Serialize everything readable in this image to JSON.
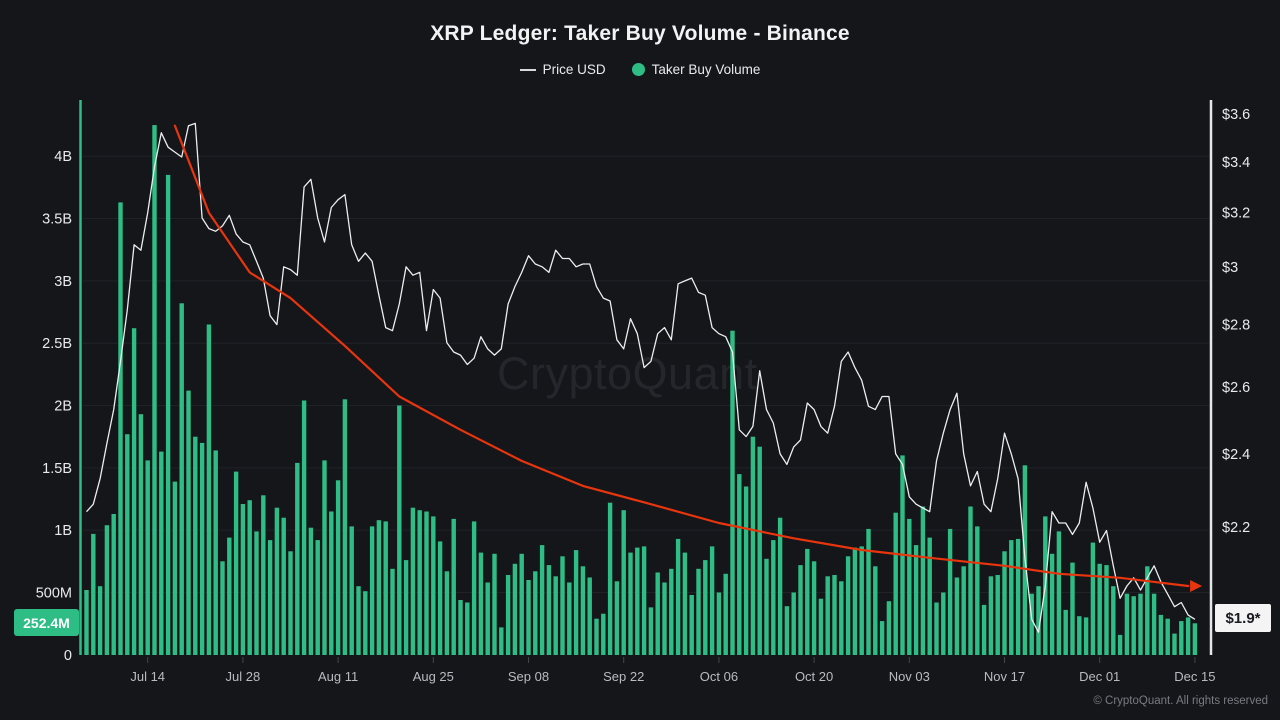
{
  "title": "XRP Ledger: Taker Buy Volume - Binance",
  "legend": [
    {
      "label": "Price USD",
      "marker": "line",
      "color": "#d9dadd"
    },
    {
      "label": "Taker Buy Volume",
      "marker": "dot",
      "color": "#2ebd85"
    }
  ],
  "watermark": "CryptoQuant",
  "footer": "© CryptoQuant. All rights reserved",
  "badges": {
    "latest_volume": "252.4M",
    "latest_price": "$1.9*"
  },
  "colors": {
    "background": "#15161a",
    "bar": "#2ebd85",
    "price_line": "#ededee",
    "trend_line": "#e8350e",
    "grid": "#212228",
    "axis_left": "#2ebd85",
    "axis_right": "#e5e6e8",
    "tick_text": "#e9eaec",
    "x_tick_text": "#b9bbc0",
    "tick_mark": "#45464c"
  },
  "chart_data": {
    "type": "bar+line",
    "title": "XRP Ledger: Taker Buy Volume - Binance",
    "x_start": "Jul 05",
    "x_end": "Dec 15",
    "x_interval": "daily",
    "y_left_label": "Taker Buy Volume",
    "y_left_unit": "XRP (billions)",
    "y_left_scale": "linear",
    "y_left_range": [
      0,
      4.45
    ],
    "y_right_label": "Price USD",
    "y_right_scale": "log",
    "y_right_range": [
      1.88,
      3.62
    ],
    "grid": "horizontal-only",
    "legend_position": "top-center",
    "y_left_ticks": [
      {
        "label": "0",
        "value": 0
      },
      {
        "label": "500M",
        "value": 0.5
      },
      {
        "label": "1B",
        "value": 1
      },
      {
        "label": "1.5B",
        "value": 1.5
      },
      {
        "label": "2B",
        "value": 2
      },
      {
        "label": "2.5B",
        "value": 2.5
      },
      {
        "label": "3B",
        "value": 3
      },
      {
        "label": "3.5B",
        "value": 3.5
      },
      {
        "label": "4B",
        "value": 4
      }
    ],
    "y_right_ticks": [
      {
        "label": "$3.6",
        "value": 3.6
      },
      {
        "label": "$3.4",
        "value": 3.4
      },
      {
        "label": "$3.2",
        "value": 3.2
      },
      {
        "label": "$3",
        "value": 3
      },
      {
        "label": "$2.8",
        "value": 2.8
      },
      {
        "label": "$2.6",
        "value": 2.6
      },
      {
        "label": "$2.4",
        "value": 2.4
      },
      {
        "label": "$2.2",
        "value": 2.2
      }
    ],
    "x_ticks": [
      {
        "label": "Jul 14",
        "day": 9
      },
      {
        "label": "Jul 28",
        "day": 23
      },
      {
        "label": "Aug 11",
        "day": 37
      },
      {
        "label": "Aug 25",
        "day": 51
      },
      {
        "label": "Sep 08",
        "day": 65
      },
      {
        "label": "Sep 22",
        "day": 79
      },
      {
        "label": "Oct 06",
        "day": 93
      },
      {
        "label": "Oct 20",
        "day": 107
      },
      {
        "label": "Nov 03",
        "day": 121
      },
      {
        "label": "Nov 17",
        "day": 135
      },
      {
        "label": "Dec 01",
        "day": 149
      },
      {
        "label": "Dec 15",
        "day": 163
      }
    ],
    "volume_billions": [
      0.52,
      0.97,
      0.55,
      1.04,
      1.13,
      3.63,
      1.77,
      2.62,
      1.93,
      1.56,
      4.25,
      1.63,
      3.85,
      1.39,
      2.82,
      2.12,
      1.75,
      1.7,
      2.65,
      1.64,
      0.75,
      0.94,
      1.47,
      1.21,
      1.24,
      0.99,
      1.28,
      0.92,
      1.18,
      1.1,
      0.83,
      1.54,
      2.04,
      1.02,
      0.92,
      1.56,
      1.15,
      1.4,
      2.05,
      1.03,
      0.55,
      0.51,
      1.03,
      1.08,
      1.07,
      0.69,
      2.0,
      0.76,
      1.18,
      1.16,
      1.15,
      1.11,
      0.91,
      0.67,
      1.09,
      0.44,
      0.42,
      1.07,
      0.82,
      0.58,
      0.81,
      0.22,
      0.64,
      0.73,
      0.81,
      0.6,
      0.67,
      0.88,
      0.72,
      0.63,
      0.79,
      0.58,
      0.84,
      0.71,
      0.62,
      0.29,
      0.33,
      1.22,
      0.59,
      1.16,
      0.82,
      0.86,
      0.87,
      0.38,
      0.66,
      0.58,
      0.69,
      0.93,
      0.82,
      0.48,
      0.69,
      0.76,
      0.87,
      0.5,
      0.65,
      2.6,
      1.45,
      1.35,
      1.75,
      1.67,
      0.77,
      0.92,
      1.1,
      0.39,
      0.5,
      0.72,
      0.85,
      0.75,
      0.45,
      0.63,
      0.64,
      0.59,
      0.79,
      0.86,
      0.87,
      1.01,
      0.71,
      0.27,
      0.43,
      1.14,
      1.6,
      1.09,
      0.88,
      1.19,
      0.94,
      0.42,
      0.5,
      1.01,
      0.62,
      0.71,
      1.19,
      1.03,
      0.4,
      0.63,
      0.64,
      0.83,
      0.92,
      0.93,
      1.52,
      0.49,
      0.55,
      1.11,
      0.81,
      0.99,
      0.36,
      0.74,
      0.31,
      0.3,
      0.9,
      0.73,
      0.72,
      0.55,
      0.16,
      0.49,
      0.47,
      0.49,
      0.71,
      0.49,
      0.32,
      0.29,
      0.17,
      0.27,
      0.3,
      0.2524
    ],
    "price_usd": [
      2.24,
      2.26,
      2.33,
      2.43,
      2.53,
      2.68,
      2.85,
      3.08,
      3.06,
      3.2,
      3.38,
      3.52,
      3.46,
      3.44,
      3.42,
      3.55,
      3.56,
      3.18,
      3.14,
      3.13,
      3.15,
      3.19,
      3.12,
      3.09,
      3.08,
      3.02,
      2.96,
      2.83,
      2.8,
      3.0,
      2.99,
      2.97,
      3.3,
      3.33,
      3.18,
      3.09,
      3.22,
      3.25,
      3.27,
      3.08,
      3.02,
      3.05,
      3.02,
      2.9,
      2.79,
      2.78,
      2.87,
      3.0,
      2.97,
      2.98,
      2.78,
      2.92,
      2.89,
      2.74,
      2.71,
      2.7,
      2.67,
      2.69,
      2.76,
      2.72,
      2.7,
      2.72,
      2.87,
      2.93,
      2.98,
      3.04,
      3.01,
      3.0,
      2.98,
      3.06,
      3.03,
      3.03,
      3.0,
      3.01,
      3.01,
      2.93,
      2.89,
      2.88,
      2.75,
      2.72,
      2.82,
      2.77,
      2.66,
      2.68,
      2.77,
      2.79,
      2.75,
      2.94,
      2.95,
      2.96,
      2.91,
      2.9,
      2.79,
      2.77,
      2.76,
      2.71,
      2.47,
      2.45,
      2.48,
      2.65,
      2.53,
      2.49,
      2.4,
      2.37,
      2.42,
      2.44,
      2.55,
      2.53,
      2.48,
      2.46,
      2.54,
      2.68,
      2.71,
      2.66,
      2.62,
      2.54,
      2.53,
      2.57,
      2.57,
      2.4,
      2.37,
      2.28,
      2.26,
      2.25,
      2.24,
      2.38,
      2.46,
      2.53,
      2.58,
      2.4,
      2.31,
      2.35,
      2.26,
      2.24,
      2.33,
      2.46,
      2.4,
      2.33,
      2.12,
      1.97,
      1.94,
      2.05,
      2.24,
      2.21,
      2.21,
      2.18,
      2.21,
      2.32,
      2.25,
      2.16,
      2.19,
      2.1,
      2.02,
      2.05,
      2.07,
      2.04,
      2.07,
      2.1,
      2.06,
      2.03,
      2.0,
      2.01,
      1.98,
      1.97
    ],
    "trend_line": {
      "description": "decaying trend curve with right arrow",
      "points_day_price": [
        [
          13,
          3.55
        ],
        [
          18,
          3.2
        ],
        [
          24,
          2.98
        ],
        [
          30,
          2.89
        ],
        [
          38,
          2.73
        ],
        [
          46,
          2.57
        ],
        [
          55,
          2.47
        ],
        [
          64,
          2.38
        ],
        [
          73,
          2.31
        ],
        [
          83,
          2.26
        ],
        [
          93,
          2.21
        ],
        [
          104,
          2.17
        ],
        [
          114,
          2.14
        ],
        [
          124,
          2.12
        ],
        [
          135,
          2.1
        ],
        [
          143,
          2.08
        ],
        [
          152,
          2.07
        ],
        [
          162,
          2.05
        ]
      ]
    }
  }
}
